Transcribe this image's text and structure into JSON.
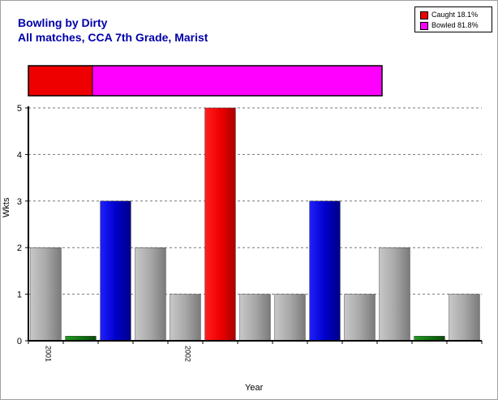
{
  "chart_data": {
    "type": "bar",
    "title": "Bowling by Dirty",
    "subtitle": "All matches, CCA 7th Grade, Marist",
    "xlabel": "Year",
    "ylabel": "Wkts",
    "ylim": [
      0,
      5
    ],
    "yticks": [
      "0",
      "1",
      "2",
      "3",
      "4",
      "5"
    ],
    "grid": true,
    "x_tick_labels": [
      {
        "index": 0,
        "label": "2001"
      },
      {
        "index": 4,
        "label": "2002"
      }
    ],
    "values": [
      2,
      0.1,
      3,
      2,
      1,
      5,
      1,
      1,
      3,
      1,
      2,
      0.1,
      1
    ],
    "bar_colors": [
      "#a8a8a8",
      "#117711",
      "#0000cc",
      "#a8a8a8",
      "#a8a8a8",
      "#ee0000",
      "#a8a8a8",
      "#a8a8a8",
      "#0000cc",
      "#a8a8a8",
      "#a8a8a8",
      "#117711",
      "#a8a8a8"
    ],
    "legend": {
      "placement": "top-right",
      "items": [
        {
          "label": "Caught",
          "value": "18.1%",
          "color": "#ee0000"
        },
        {
          "label": "Bowled",
          "value": "81.8%",
          "color": "#ff00ff"
        }
      ]
    },
    "proportion_bar": [
      {
        "label": "Caught",
        "fraction": 0.181,
        "color": "#ee0000"
      },
      {
        "label": "Bowled",
        "fraction": 0.818,
        "color": "#ff00ff"
      }
    ]
  }
}
